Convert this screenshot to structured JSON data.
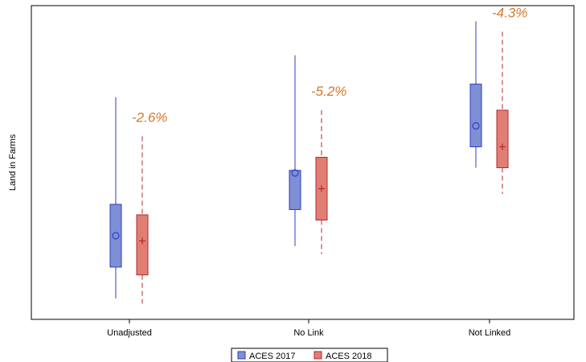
{
  "chart_data": {
    "type": "box",
    "ylabel": "Land in Farms",
    "categories": [
      "Unadjusted",
      "No Link",
      "Not Linked"
    ],
    "series": [
      {
        "name": "ACES  2017",
        "color": "#7f8fd6",
        "edge_color": "#2f3fbf",
        "mean_marker": "circle",
        "whisker_style": "solid",
        "boxes": [
          {
            "whisker_low": 4.0,
            "q1": 10.0,
            "mean": 16.0,
            "q3": 22.0,
            "whisker_high": 42.5
          },
          {
            "whisker_low": 14.0,
            "q1": 21.0,
            "mean": 28.0,
            "q3": 28.5,
            "whisker_high": 50.5
          },
          {
            "whisker_low": 29.0,
            "q1": 33.0,
            "mean": 37.0,
            "q3": 45.0,
            "whisker_high": 57.0
          }
        ]
      },
      {
        "name": "ACES  2018",
        "color": "#e07e74",
        "edge_color": "#b3282d",
        "mean_marker": "plus",
        "whisker_style": "dashed",
        "boxes": [
          {
            "whisker_low": 3.0,
            "q1": 8.5,
            "mean": 15.0,
            "q3": 20.0,
            "whisker_high": 35.0
          },
          {
            "whisker_low": 12.5,
            "q1": 19.0,
            "mean": 25.0,
            "q3": 31.0,
            "whisker_high": 40.0
          },
          {
            "whisker_low": 24.0,
            "q1": 29.0,
            "mean": 33.0,
            "q3": 40.0,
            "whisker_high": 55.0
          }
        ]
      }
    ],
    "annotations": [
      "-2.6%",
      "-5.2%",
      "-4.3%"
    ],
    "ylim": [
      0,
      60
    ],
    "grid": false,
    "legend": "bottom-center"
  }
}
